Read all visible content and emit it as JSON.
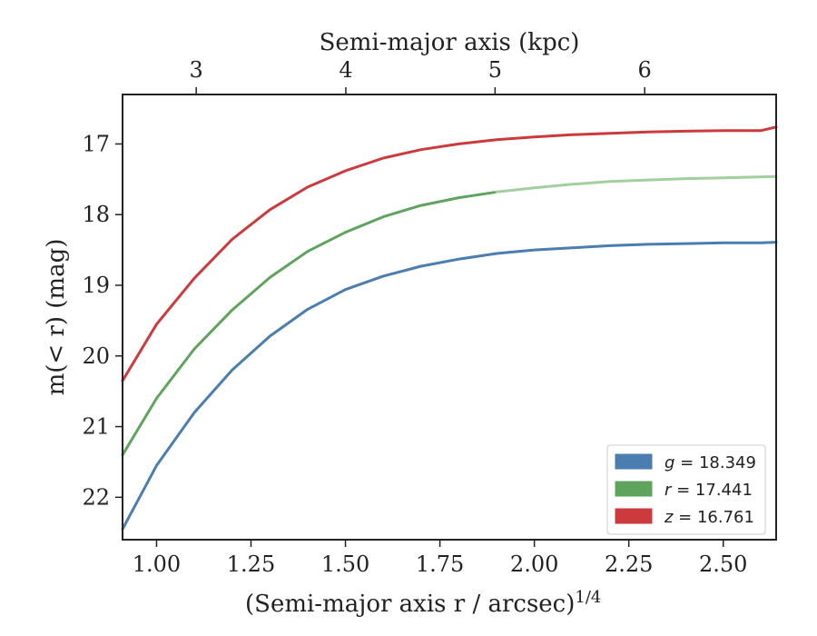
{
  "chart_data": {
    "type": "line",
    "xlabel": "(Semi-major axis r / arcsec)",
    "xlabel_superscript": "1/4",
    "ylabel": "m(< r) (mag)",
    "top_xlabel": "Semi-major axis (kpc)",
    "xlim": [
      0.91,
      2.64
    ],
    "ylim": [
      22.6,
      16.3
    ],
    "y_inverted": true,
    "xticks": [
      1.0,
      1.25,
      1.5,
      1.75,
      2.0,
      2.25,
      2.5
    ],
    "xtick_labels": [
      "1.00",
      "1.25",
      "1.50",
      "1.75",
      "2.00",
      "2.25",
      "2.50"
    ],
    "yticks": [
      17,
      18,
      19,
      20,
      21,
      22
    ],
    "ytick_labels": [
      "17",
      "18",
      "19",
      "20",
      "21",
      "22"
    ],
    "top_ticks_kpc": [
      3,
      4,
      5,
      6
    ],
    "top_tick_labels": [
      "3",
      "4",
      "5",
      "6"
    ],
    "top_ticks_x_position": [
      1.105,
      1.501,
      1.896,
      2.292
    ],
    "legend_position": "lower-right",
    "grid": false,
    "series": [
      {
        "name": "g = 18.349",
        "legend_symbol": "g",
        "legend_value": "= 18.349",
        "color": "#4a7eb0",
        "x": [
          0.91,
          1.0,
          1.1,
          1.2,
          1.3,
          1.4,
          1.5,
          1.6,
          1.7,
          1.8,
          1.9,
          2.0,
          2.1,
          2.2,
          2.3,
          2.4,
          2.5,
          2.6,
          2.64
        ],
        "y": [
          22.45,
          21.55,
          20.8,
          20.2,
          19.72,
          19.34,
          19.06,
          18.87,
          18.73,
          18.63,
          18.55,
          18.5,
          18.47,
          18.44,
          18.42,
          18.41,
          18.4,
          18.4,
          18.39
        ]
      },
      {
        "name": "r = 17.441",
        "legend_symbol": "r",
        "legend_value": "= 17.441",
        "color": "#5fa45d",
        "light_color": "#a3cf9f",
        "light_from_x": 1.9,
        "x": [
          0.91,
          1.0,
          1.1,
          1.2,
          1.3,
          1.4,
          1.5,
          1.6,
          1.7,
          1.8,
          1.9,
          2.0,
          2.1,
          2.2,
          2.3,
          2.4,
          2.5,
          2.64
        ],
        "y": [
          21.4,
          20.6,
          19.9,
          19.35,
          18.89,
          18.52,
          18.25,
          18.03,
          17.87,
          17.76,
          17.68,
          17.62,
          17.57,
          17.53,
          17.51,
          17.49,
          17.48,
          17.46
        ]
      },
      {
        "name": "z = 16.761",
        "legend_symbol": "z",
        "legend_value": "= 16.761",
        "color": "#cc3a3d",
        "x": [
          0.91,
          1.0,
          1.1,
          1.2,
          1.3,
          1.4,
          1.5,
          1.6,
          1.7,
          1.8,
          1.9,
          2.0,
          2.1,
          2.2,
          2.3,
          2.4,
          2.5,
          2.6,
          2.64
        ],
        "y": [
          20.35,
          19.55,
          18.9,
          18.35,
          17.93,
          17.61,
          17.38,
          17.2,
          17.08,
          17.0,
          16.94,
          16.9,
          16.87,
          16.85,
          16.83,
          16.82,
          16.81,
          16.81,
          16.76
        ]
      }
    ]
  }
}
